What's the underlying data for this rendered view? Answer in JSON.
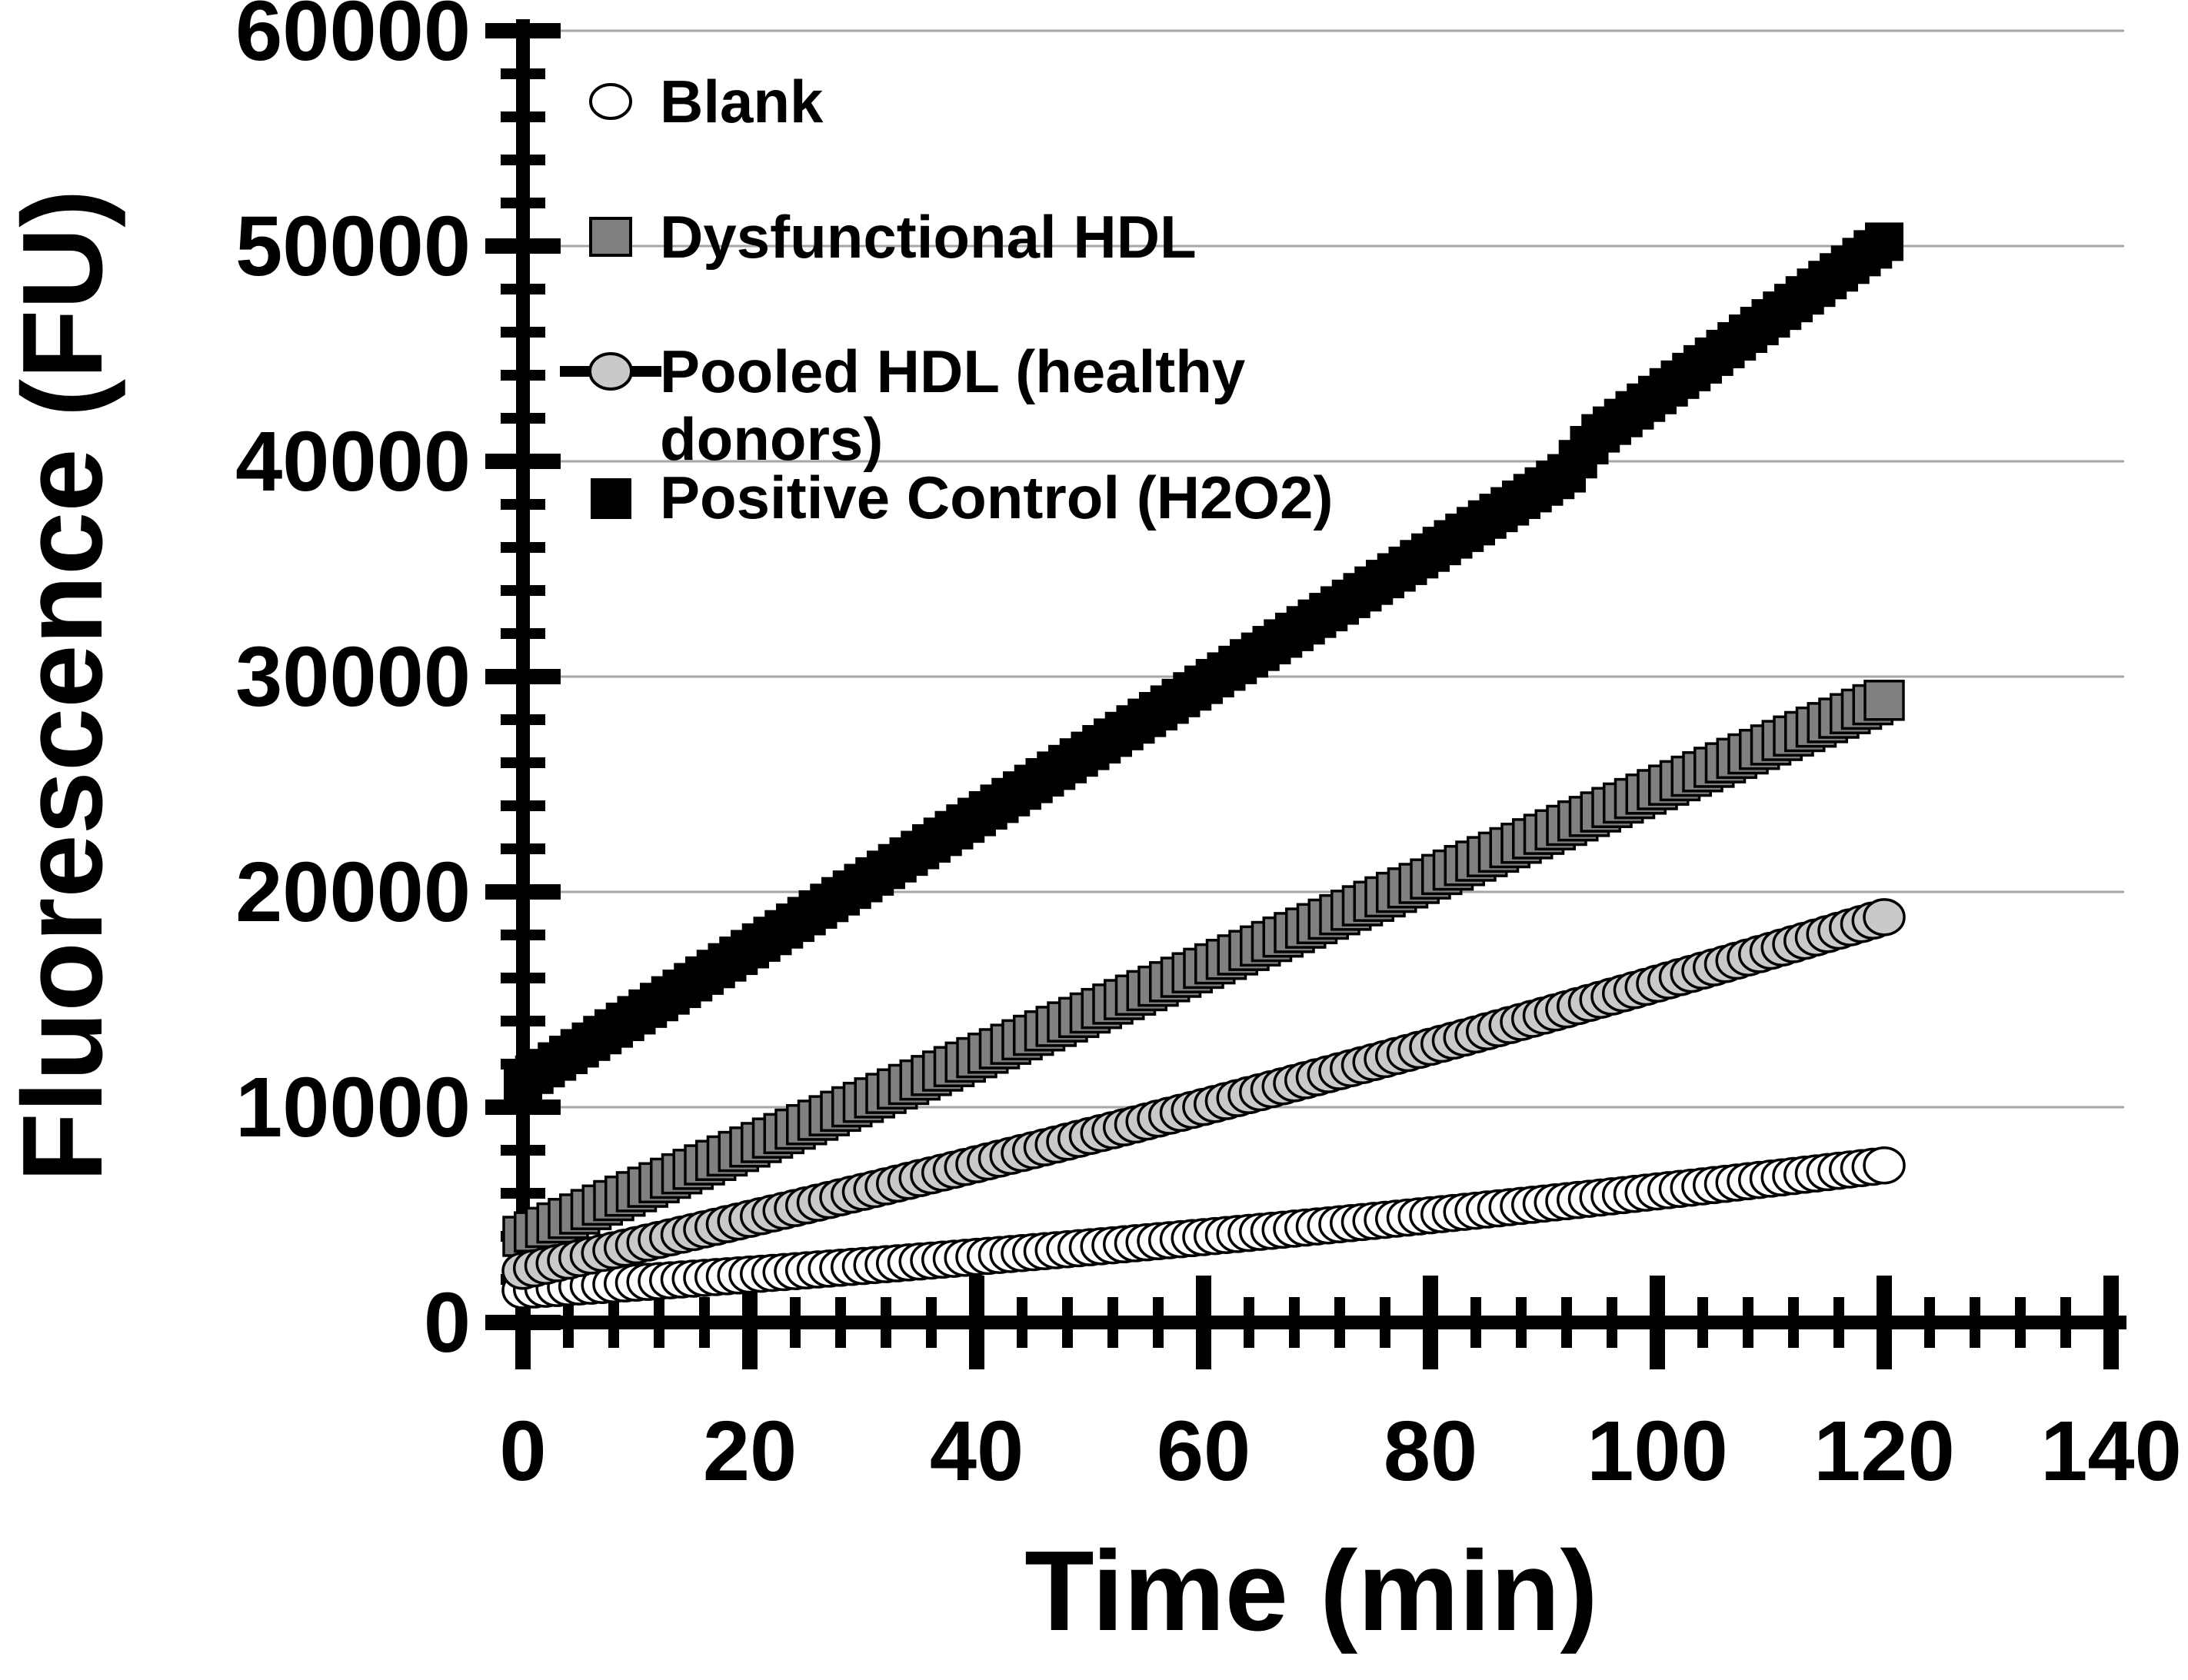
{
  "figure": {
    "background": "#ffffff"
  },
  "axes": {
    "x": {
      "title": "Time (min)",
      "min": 0,
      "max": 140,
      "major_unit": 20,
      "minor_unit": 4,
      "tick_labels": [
        "0",
        "20",
        "40",
        "60",
        "80",
        "100",
        "120",
        "140"
      ]
    },
    "y": {
      "title": "Fluorescence (FU)",
      "min": 0,
      "max": 60000,
      "major_unit": 10000,
      "minor_unit": 2000,
      "tick_labels": [
        "0",
        "10000",
        "20000",
        "30000",
        "40000",
        "50000",
        "60000"
      ]
    }
  },
  "colors": {
    "axis": "#000000",
    "gridline": "#a6a6a6",
    "text": "#000000",
    "blank_fill": "#ffffff",
    "dysfunctional_fill": "#808080",
    "pooled_fill": "#c9c9c9",
    "positive_fill": "#000000"
  },
  "legend": {
    "items": [
      {
        "label": "Blank",
        "marker": "open-circle",
        "fill": "#ffffff"
      },
      {
        "label": "Dysfunctional HDL",
        "marker": "square",
        "fill": "#808080"
      },
      {
        "label": "Pooled HDL (healthy donors)",
        "lines": [
          "Pooled HDL (healthy",
          "donors)"
        ],
        "marker": "circle-with-line",
        "fill": "#c9c9c9"
      },
      {
        "label": "Positive Control (H2O2)",
        "marker": "square",
        "fill": "#000000"
      }
    ]
  },
  "chart_data": {
    "type": "scatter",
    "title": "",
    "xlabel": "Time (min)",
    "ylabel": "Fluorescence (FU)",
    "xlim": [
      0,
      140
    ],
    "ylim": [
      0,
      60000
    ],
    "grid": "horizontal-major",
    "legend_position": "top-left-inside",
    "x_start": 0,
    "x_step": 1,
    "n_points": 121,
    "series": [
      {
        "name": "Blank",
        "marker": "circle",
        "fill": "#ffffff",
        "stroke": "#000000",
        "values": [
          1500,
          1534,
          1568,
          1603,
          1638,
          1673,
          1708,
          1743,
          1779,
          1815,
          1851,
          1887,
          1924,
          1961,
          1998,
          2036,
          2073,
          2111,
          2149,
          2187,
          2226,
          2265,
          2304,
          2343,
          2383,
          2423,
          2463,
          2503,
          2543,
          2584,
          2625,
          2666,
          2708,
          2749,
          2791,
          2834,
          2876,
          2919,
          2962,
          3005,
          3048,
          3092,
          3136,
          3180,
          3224,
          3269,
          3313,
          3358,
          3404,
          3449,
          3495,
          3541,
          3587,
          3634,
          3681,
          3728,
          3775,
          3822,
          3870,
          3918,
          3966,
          4014,
          4063,
          4112,
          4161,
          4211,
          4260,
          4310,
          4360,
          4410,
          4461,
          4511,
          4563,
          4614,
          4666,
          4718,
          4770,
          4822,
          4874,
          4927,
          4980,
          5033,
          5087,
          5140,
          5194,
          5249,
          5303,
          5358,
          5413,
          5468,
          5523,
          5579,
          5634,
          5691,
          5747,
          5804,
          5860,
          5917,
          5975,
          6032,
          6090,
          6148,
          6206,
          6265,
          6323,
          6383,
          6442,
          6501,
          6561,
          6621,
          6681,
          6741,
          6803,
          6864,
          6924,
          6986,
          7048,
          7109,
          7171,
          7233,
          7296
        ]
      },
      {
        "name": "Dysfunctional HDL",
        "marker": "square",
        "fill": "#808080",
        "stroke": "#000000",
        "values": [
          4000,
          4208,
          4415,
          4623,
          4830,
          5038,
          5245,
          5453,
          5660,
          5868,
          6075,
          6283,
          6490,
          6698,
          6905,
          7113,
          7320,
          7528,
          7735,
          7943,
          8150,
          8358,
          8565,
          8773,
          8980,
          9188,
          9395,
          9603,
          9810,
          10018,
          10225,
          10433,
          10640,
          10848,
          11055,
          11263,
          11470,
          11678,
          11885,
          12093,
          12300,
          12508,
          12715,
          12923,
          13130,
          13338,
          13545,
          13753,
          13960,
          14168,
          14375,
          14583,
          14790,
          14998,
          15205,
          15413,
          15620,
          15828,
          16035,
          16243,
          16450,
          16658,
          16865,
          17073,
          17280,
          17488,
          17695,
          17903,
          18110,
          18318,
          18525,
          18733,
          18940,
          19148,
          19355,
          19563,
          19770,
          19978,
          20185,
          20393,
          20600,
          20808,
          21015,
          21223,
          21430,
          21638,
          21845,
          22053,
          22260,
          22468,
          22675,
          22883,
          23090,
          23298,
          23505,
          23713,
          23920,
          24128,
          24335,
          24543,
          24750,
          24958,
          25165,
          25373,
          25580,
          25788,
          25995,
          26203,
          26410,
          26618,
          26825,
          27033,
          27240,
          27448,
          27655,
          27863,
          28070,
          28278,
          28485,
          28693,
          28900
        ]
      },
      {
        "name": "Pooled HDL (healthy donors)",
        "marker": "circle",
        "fill": "#c9c9c9",
        "stroke": "#000000",
        "values": [
          2400,
          2518,
          2636,
          2755,
          2874,
          2993,
          3112,
          3232,
          3352,
          3473,
          3593,
          3714,
          3836,
          3957,
          4079,
          4201,
          4324,
          4446,
          4570,
          4693,
          4817,
          4941,
          5065,
          5190,
          5315,
          5440,
          5566,
          5692,
          5818,
          5945,
          6070,
          6197,
          6324,
          6452,
          6580,
          6708,
          6836,
          6965,
          7094,
          7223,
          7353,
          7483,
          7613,
          7743,
          7874,
          8005,
          8137,
          8268,
          8400,
          8533,
          8667,
          8800,
          8933,
          9067,
          9201,
          9336,
          9471,
          9606,
          9741,
          9877,
          10013,
          10149,
          10286,
          10423,
          10561,
          10698,
          10837,
          10975,
          11114,
          11253,
          11392,
          11532,
          11672,
          11813,
          11954,
          12095,
          12236,
          12378,
          12520,
          12663,
          12806,
          12949,
          13093,
          13237,
          13381,
          13526,
          13671,
          13816,
          13962,
          14108,
          14255,
          14402,
          14549,
          14697,
          14845,
          14993,
          15142,
          15291,
          15441,
          15591,
          15741,
          15892,
          16043,
          16194,
          16346,
          16498,
          16651,
          16804,
          16957,
          17111,
          17265,
          17419,
          17574,
          17729,
          17885,
          18041,
          18197,
          18354,
          18511,
          18669,
          18827
        ]
      },
      {
        "name": "Positive Control (H2O2)",
        "marker": "square",
        "fill": "#000000",
        "stroke": "#000000",
        "values": [
          11200,
          11507,
          11814,
          12121,
          12428,
          12735,
          13042,
          13349,
          13656,
          13963,
          14270,
          14577,
          14884,
          15191,
          15498,
          15805,
          16112,
          16419,
          16726,
          17033,
          17340,
          17647,
          17954,
          18261,
          18568,
          18875,
          19182,
          19489,
          19796,
          20103,
          20410,
          20717,
          21024,
          21331,
          21638,
          21945,
          22252,
          22559,
          22866,
          23173,
          23480,
          23787,
          24094,
          24401,
          24708,
          25015,
          25322,
          25629,
          25936,
          26243,
          26550,
          26857,
          27164,
          27471,
          27778,
          28085,
          28392,
          28699,
          29006,
          29313,
          29620,
          29927,
          30234,
          30541,
          30848,
          31155,
          31462,
          31769,
          32076,
          32383,
          32690,
          32997,
          33304,
          33611,
          33918,
          34225,
          34532,
          34839,
          35146,
          35453,
          35760,
          36067,
          36374,
          36681,
          36988,
          37295,
          37602,
          37909,
          38216,
          38523,
          38830,
          39137,
          39444,
          40100,
          40750,
          41300,
          41656,
          42012,
          42368,
          42724,
          43080,
          43436,
          43792,
          44148,
          44504,
          44860,
          45216,
          45572,
          45928,
          46284,
          46640,
          46996,
          47352,
          47708,
          48064,
          48420,
          48776,
          49132,
          49488,
          49844,
          50200
        ]
      }
    ]
  }
}
